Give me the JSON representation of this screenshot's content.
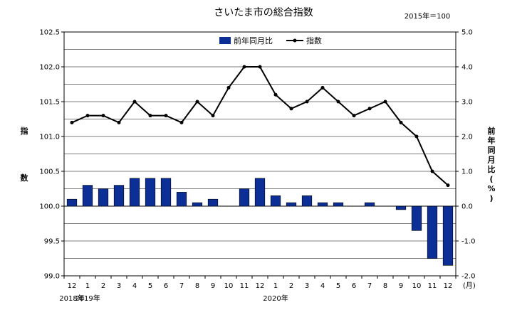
{
  "chart_data": {
    "type": "bar+line",
    "title": "さいたま市の総合指数",
    "base_note": "2015年＝100",
    "categories": [
      "12",
      "1",
      "2",
      "3",
      "4",
      "5",
      "6",
      "7",
      "8",
      "9",
      "10",
      "11",
      "12",
      "1",
      "2",
      "3",
      "4",
      "5",
      "6",
      "7",
      "8",
      "9",
      "10",
      "11",
      "12"
    ],
    "category_unit": "(月)",
    "year_labels": [
      {
        "index": 0,
        "label": "2018年"
      },
      {
        "index": 1,
        "label": "2019年"
      },
      {
        "index": 13,
        "label": "2020年"
      }
    ],
    "series": [
      {
        "name": "前年同月比",
        "kind": "bar",
        "axis": "right",
        "color": "#0b2f96",
        "values": [
          0.2,
          0.6,
          0.5,
          0.6,
          0.8,
          0.8,
          0.8,
          0.4,
          0.1,
          0.2,
          0.0,
          0.5,
          0.8,
          0.3,
          0.1,
          0.3,
          0.1,
          0.1,
          0.0,
          0.1,
          0.0,
          -0.1,
          -0.7,
          -1.5,
          -1.7
        ]
      },
      {
        "name": "指数",
        "kind": "line",
        "axis": "left",
        "color": "#000000",
        "values": [
          101.2,
          101.3,
          101.3,
          101.2,
          101.5,
          101.3,
          101.3,
          101.2,
          101.5,
          101.3,
          101.7,
          102.0,
          102.0,
          101.6,
          101.4,
          101.5,
          101.7,
          101.5,
          101.3,
          101.4,
          101.5,
          101.2,
          101.0,
          100.5,
          100.3
        ]
      }
    ],
    "left_axis": {
      "label": "指数",
      "ylim": [
        99.0,
        102.5
      ],
      "ticks": [
        "99.0",
        "99.5",
        "100.0",
        "100.5",
        "101.0",
        "101.5",
        "102.0",
        "102.5"
      ]
    },
    "right_axis": {
      "label": "前年同月比(%)",
      "ylim": [
        -2.0,
        5.0
      ],
      "ticks": [
        "-2.0",
        "-1.0",
        "0.0",
        "1.0",
        "2.0",
        "3.0",
        "4.0",
        "5.0"
      ]
    },
    "grid": true,
    "legend_position": "top-center"
  }
}
